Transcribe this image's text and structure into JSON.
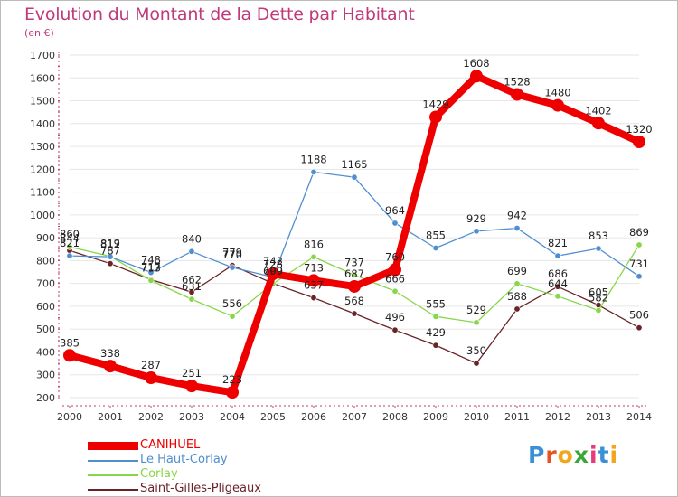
{
  "title": "Evolution du Montant de la Dette par Habitant",
  "subtitle": "(en €)",
  "logo": {
    "letters": [
      "P",
      "r",
      "o",
      "x",
      "i",
      "t",
      "i"
    ],
    "colors": [
      "#3a8fd8",
      "#e8521e",
      "#f1a61e",
      "#3aa63a",
      "#e83a7c",
      "#3a8fd8",
      "#f1a61e"
    ]
  },
  "chart_data": {
    "type": "line",
    "title": "Evolution du Montant de la Dette par Habitant",
    "subtitle": "(en €)",
    "x": [
      "2000",
      "2001",
      "2002",
      "2003",
      "2004",
      "2005",
      "2006",
      "2007",
      "2008",
      "2009",
      "2010",
      "2011",
      "2012",
      "2013",
      "2014"
    ],
    "ylim": [
      200,
      1700
    ],
    "yticks": [
      200,
      300,
      400,
      500,
      600,
      700,
      800,
      900,
      1000,
      1100,
      1200,
      1300,
      1400,
      1500,
      1600,
      1700
    ],
    "grid": true,
    "legend": "bottom-left",
    "series": [
      {
        "name": "CANIHUEL",
        "color": "#ee0000",
        "values": [
          385,
          338,
          287,
          251,
          223,
          742,
          713,
          687,
          760,
          1429,
          1608,
          1528,
          1480,
          1402,
          1320
        ],
        "labels": [
          "385",
          "338",
          "287",
          "251",
          "223",
          "742",
          "713",
          "687",
          "760",
          "1429",
          "1608",
          "1528",
          "1480",
          "1402",
          "1320"
        ]
      },
      {
        "name": "Le Haut-Corlay",
        "color": "#4f8fd0",
        "values": [
          821,
          817,
          748,
          840,
          770,
          728,
          1188,
          1165,
          964,
          855,
          929,
          942,
          821,
          853,
          731
        ],
        "labels": [
          "821",
          "817",
          "748",
          "840",
          "770",
          "728",
          "1188",
          "1165",
          "964",
          "855",
          "929",
          "942",
          "821",
          "853",
          "731"
        ]
      },
      {
        "name": "Corlay",
        "color": "#88d64a",
        "values": [
          860,
          819,
          713,
          631,
          556,
          699,
          816,
          737,
          666,
          555,
          529,
          699,
          644,
          582,
          869
        ],
        "labels": [
          "860",
          "819",
          "713",
          "631",
          "556",
          "699",
          "816",
          "737",
          "666",
          "555",
          "529",
          "699",
          "644",
          "582",
          "869"
        ]
      },
      {
        "name": "Saint-Gilles-Pligeaux",
        "color": "#6a2428",
        "values": [
          844,
          787,
          717,
          662,
          779,
          700,
          637,
          568,
          496,
          429,
          350,
          588,
          686,
          605,
          506
        ],
        "labels": [
          "844",
          "787",
          "717",
          "662",
          "779",
          "700",
          "637",
          "568",
          "496",
          "429",
          "350",
          "588",
          "686",
          "605",
          "506"
        ]
      }
    ]
  }
}
